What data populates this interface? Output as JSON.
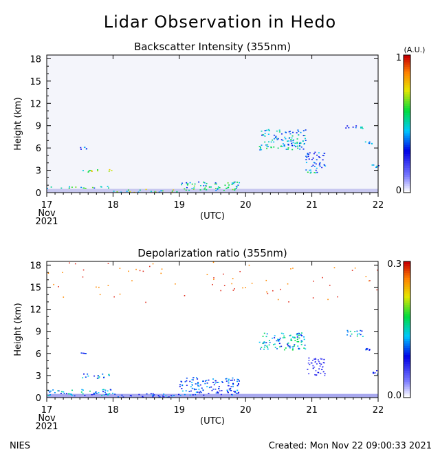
{
  "page": {
    "title": "Lidar Observation in Hedo",
    "footer_left": "NIES",
    "footer_right": "Created: Mon Nov 22 09:00:33 2021"
  },
  "chart_data": [
    {
      "type": "heatmap",
      "title": "Backscatter Intensity (355nm)",
      "ylabel": "Height (km)",
      "xlabel": "(UTC)",
      "x_ticks": [
        "17",
        "18",
        "19",
        "20",
        "21",
        "22"
      ],
      "x_first_tick_extra": [
        "Nov",
        "2021"
      ],
      "xlim": [
        17,
        22
      ],
      "y_ticks": [
        "0",
        "3",
        "6",
        "9",
        "12",
        "15",
        "18"
      ],
      "ylim": [
        0,
        18.5
      ],
      "colorbar": {
        "unit": "(A.U.)",
        "min_label": "0",
        "max_label": "1",
        "range": [
          0,
          1
        ]
      },
      "features": [
        {
          "x": [
            17.0,
            18.0
          ],
          "y": [
            0.6,
            0.9
          ],
          "level": 0.6
        },
        {
          "x": [
            17.5,
            18.0
          ],
          "y": [
            2.8,
            3.2
          ],
          "level": 0.75
        },
        {
          "x": [
            17.5,
            17.6
          ],
          "y": [
            5.9,
            6.2
          ],
          "level": 0.4
        },
        {
          "x": [
            18.0,
            19.0
          ],
          "y": [
            0.1,
            0.5
          ],
          "level": 0.7
        },
        {
          "x": [
            19.0,
            19.9
          ],
          "y": [
            0.3,
            1.5
          ],
          "level": 0.6
        },
        {
          "x": [
            20.2,
            20.9
          ],
          "y": [
            5.8,
            8.6
          ],
          "level": 0.55
        },
        {
          "x": [
            20.9,
            21.2
          ],
          "y": [
            3.0,
            5.5
          ],
          "level": 0.4
        },
        {
          "x": [
            20.9,
            21.1
          ],
          "y": [
            2.7,
            2.9
          ],
          "level": 0.6
        },
        {
          "x": [
            21.5,
            21.8
          ],
          "y": [
            8.5,
            9.1
          ],
          "level": 0.5
        },
        {
          "x": [
            21.8,
            21.9
          ],
          "y": [
            6.6,
            6.9
          ],
          "level": 0.5
        },
        {
          "x": [
            21.9,
            22.0
          ],
          "y": [
            3.3,
            3.8
          ],
          "level": 0.5
        }
      ]
    },
    {
      "type": "heatmap",
      "title": "Depolarization ratio (355nm)",
      "ylabel": "Height (km)",
      "xlabel": "(UTC)",
      "x_ticks": [
        "17",
        "18",
        "19",
        "20",
        "21",
        "22"
      ],
      "x_first_tick_extra": [
        "Nov",
        "2021"
      ],
      "xlim": [
        17,
        22
      ],
      "y_ticks": [
        "0",
        "3",
        "6",
        "9",
        "12",
        "15",
        "18"
      ],
      "ylim": [
        0,
        18.5
      ],
      "colorbar": {
        "min_label": "0.0",
        "max_label": "0.3",
        "range": [
          0,
          0.3
        ]
      },
      "features": [
        {
          "x": [
            17.0,
            18.0
          ],
          "y": [
            0.3,
            1.2
          ],
          "level": 0.15
        },
        {
          "x": [
            17.5,
            18.0
          ],
          "y": [
            2.7,
            3.3
          ],
          "level": 0.14
        },
        {
          "x": [
            17.5,
            17.6
          ],
          "y": [
            5.9,
            6.2
          ],
          "level": 0.1
        },
        {
          "x": [
            18.0,
            19.0
          ],
          "y": [
            0.1,
            0.6
          ],
          "level": 0.12
        },
        {
          "x": [
            19.0,
            19.9
          ],
          "y": [
            0.3,
            2.8
          ],
          "level": 0.12
        },
        {
          "x": [
            20.2,
            20.9
          ],
          "y": [
            6.5,
            8.9
          ],
          "level": 0.16
        },
        {
          "x": [
            20.9,
            21.2
          ],
          "y": [
            3.0,
            5.5
          ],
          "level": 0.08
        },
        {
          "x": [
            21.5,
            21.8
          ],
          "y": [
            8.3,
            9.2
          ],
          "level": 0.15
        },
        {
          "x": [
            21.8,
            21.9
          ],
          "y": [
            6.5,
            6.9
          ],
          "level": 0.1
        },
        {
          "x": [
            21.9,
            22.0
          ],
          "y": [
            3.2,
            3.8
          ],
          "level": 0.1
        },
        {
          "x": [
            17.0,
            22.0
          ],
          "y": [
            13.0,
            18.5
          ],
          "level": 0.29,
          "style": "scattered-noise"
        }
      ]
    }
  ]
}
